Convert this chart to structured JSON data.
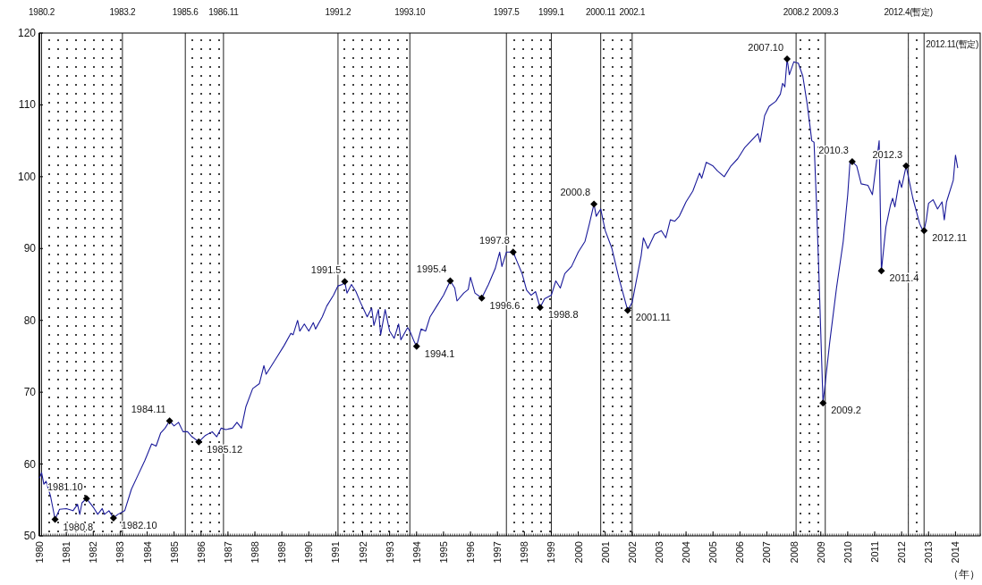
{
  "chart_data": {
    "type": "line",
    "grid": false,
    "xlim": [
      "1980-01",
      "2014-12"
    ],
    "xticks": [
      "1980",
      "1981",
      "1982",
      "1983",
      "1984",
      "1985",
      "1986",
      "1987",
      "1988",
      "1989",
      "1990",
      "1991",
      "1992",
      "1993",
      "1994",
      "1995",
      "1996",
      "1997",
      "1998",
      "1999",
      "2000",
      "2001",
      "2002",
      "2003",
      "2004",
      "2005",
      "2006",
      "2007",
      "2008",
      "2009",
      "2010",
      "2011",
      "2012",
      "2013",
      "2014"
    ],
    "ylim": [
      50,
      120
    ],
    "yticks": [
      50,
      60,
      70,
      80,
      90,
      100,
      110,
      120
    ],
    "x": [
      "1980-01",
      "1980-02",
      "1980-03",
      "1980-04",
      "1980-06",
      "1980-08",
      "1980-10",
      "1981-01",
      "1981-04",
      "1981-06",
      "1981-07",
      "1981-08",
      "1981-10",
      "1982-01",
      "1982-03",
      "1982-05",
      "1982-06",
      "1982-08",
      "1982-10",
      "1982-12",
      "1983-03",
      "1983-06",
      "1983-09",
      "1983-12",
      "1984-03",
      "1984-05",
      "1984-07",
      "1984-09",
      "1984-11",
      "1985-01",
      "1985-03",
      "1985-05",
      "1985-07",
      "1985-09",
      "1985-12",
      "1986-03",
      "1986-06",
      "1986-08",
      "1986-10",
      "1986-12",
      "1987-03",
      "1987-05",
      "1987-07",
      "1987-09",
      "1987-12",
      "1988-03",
      "1988-05",
      "1988-06",
      "1988-08",
      "1988-11",
      "1989-02",
      "1989-05",
      "1989-06",
      "1989-08",
      "1989-09",
      "1989-11",
      "1990-01",
      "1990-03",
      "1990-04",
      "1990-07",
      "1990-09",
      "1990-12",
      "1991-02",
      "1991-04",
      "1991-05",
      "1991-06",
      "1991-08",
      "1991-10",
      "1991-12",
      "1992-03",
      "1992-05",
      "1992-06",
      "1992-08",
      "1992-09",
      "1992-11",
      "1993-01",
      "1993-03",
      "1993-05",
      "1993-06",
      "1993-09",
      "1993-10",
      "1993-12",
      "1994-01",
      "1994-03",
      "1994-05",
      "1994-07",
      "1994-10",
      "1995-01",
      "1995-04",
      "1995-06",
      "1995-07",
      "1995-10",
      "1995-12",
      "1996-01",
      "1996-03",
      "1996-06",
      "1996-09",
      "1996-12",
      "1997-02",
      "1997-03",
      "1997-05",
      "1997-08",
      "1997-10",
      "1997-12",
      "1998-02",
      "1998-04",
      "1998-06",
      "1998-08",
      "1998-10",
      "1999-01",
      "1999-03",
      "1999-05",
      "1999-07",
      "1999-10",
      "2000-01",
      "2000-04",
      "2000-06",
      "2000-08",
      "2000-09",
      "2000-11",
      "2001-01",
      "2001-04",
      "2001-07",
      "2001-11",
      "2002-01",
      "2002-05",
      "2002-06",
      "2002-08",
      "2002-11",
      "2003-02",
      "2003-04",
      "2003-06",
      "2003-08",
      "2003-10",
      "2004-01",
      "2004-04",
      "2004-07",
      "2004-08",
      "2004-10",
      "2005-01",
      "2005-03",
      "2005-06",
      "2005-09",
      "2005-12",
      "2006-03",
      "2006-06",
      "2006-09",
      "2006-10",
      "2006-12",
      "2007-02",
      "2007-05",
      "2007-07",
      "2007-08",
      "2007-09",
      "2007-10",
      "2007-11",
      "2008-01",
      "2008-03",
      "2008-05",
      "2008-07",
      "2008-09",
      "2008-10",
      "2008-11",
      "2008-12",
      "2009-02",
      "2009-05",
      "2009-08",
      "2009-11",
      "2010-01",
      "2010-02",
      "2010-03",
      "2010-05",
      "2010-07",
      "2010-10",
      "2010-12",
      "2011-01",
      "2011-03",
      "2011-04",
      "2011-06",
      "2011-08",
      "2011-09",
      "2011-10",
      "2011-12",
      "2012-01",
      "2012-03",
      "2012-06",
      "2012-09",
      "2012-10",
      "2012-11",
      "2012-12",
      "2013-01",
      "2013-03",
      "2013-05",
      "2013-07",
      "2013-08",
      "2013-09",
      "2013-12",
      "2014-01",
      "2014-02"
    ],
    "series": [
      {
        "color": "#1a1a9a",
        "values": [
          58.0,
          58.8,
          57.2,
          57.6,
          55.5,
          52.3,
          53.7,
          53.8,
          53.5,
          54.4,
          53.0,
          54.6,
          55.2,
          54.0,
          53.0,
          53.8,
          53.0,
          53.5,
          52.5,
          53.0,
          53.5,
          56.5,
          58.5,
          60.5,
          62.8,
          62.5,
          64.3,
          65.0,
          66.0,
          65.3,
          65.8,
          64.5,
          64.5,
          63.8,
          63.1,
          64.0,
          64.5,
          63.8,
          65.0,
          64.8,
          65.0,
          65.8,
          65.0,
          68.0,
          70.5,
          71.2,
          73.7,
          72.5,
          73.5,
          75.0,
          76.5,
          78.2,
          78.0,
          80.0,
          78.5,
          79.5,
          78.5,
          79.7,
          78.8,
          80.5,
          82.0,
          83.5,
          84.8,
          85.0,
          85.4,
          83.8,
          85.0,
          84.0,
          82.5,
          80.5,
          81.7,
          79.3,
          81.5,
          78.0,
          81.5,
          78.5,
          77.5,
          79.5,
          77.3,
          79.0,
          78.5,
          77.0,
          76.4,
          78.8,
          78.5,
          80.5,
          82.0,
          83.5,
          85.5,
          84.5,
          82.7,
          83.8,
          84.3,
          86.0,
          83.8,
          83.1,
          85.0,
          87.2,
          89.5,
          87.5,
          89.5,
          89.5,
          88.0,
          86.5,
          84.2,
          83.5,
          84.0,
          81.8,
          83.0,
          83.5,
          85.5,
          84.5,
          86.5,
          87.5,
          89.5,
          91.0,
          93.5,
          96.2,
          94.5,
          95.5,
          92.5,
          90.0,
          86.0,
          81.4,
          82.5,
          89.0,
          91.5,
          90.0,
          92.0,
          92.5,
          91.5,
          94.0,
          93.8,
          94.5,
          96.5,
          98.0,
          100.5,
          99.8,
          102.0,
          101.5,
          100.8,
          100.0,
          101.5,
          102.5,
          104.0,
          105.0,
          106.0,
          104.8,
          108.5,
          109.8,
          110.5,
          111.5,
          113.0,
          112.5,
          116.4,
          114.2,
          116.0,
          115.8,
          114.0,
          110.0,
          105.0,
          104.8,
          97.0,
          88.0,
          68.5,
          77.0,
          84.5,
          91.0,
          97.5,
          102.0,
          102.1,
          101.5,
          99.0,
          98.8,
          97.5,
          100.0,
          105.0,
          86.9,
          93.0,
          96.0,
          97.0,
          95.8,
          99.5,
          98.5,
          101.5,
          97.0,
          93.5,
          92.8,
          92.5,
          94.0,
          96.3,
          96.8,
          95.5,
          96.5,
          94.0,
          96.5,
          99.5,
          103.0,
          101.2
        ]
      }
    ],
    "bands": [
      {
        "axis": "x",
        "from": "1980-02",
        "to": "1983-02"
      },
      {
        "axis": "x",
        "from": "1985-06",
        "to": "1986-11"
      },
      {
        "axis": "x",
        "from": "1991-02",
        "to": "1993-10"
      },
      {
        "axis": "x",
        "from": "1997-05",
        "to": "1999-01"
      },
      {
        "axis": "x",
        "from": "2000-11",
        "to": "2002-01"
      },
      {
        "axis": "x",
        "from": "2008-02",
        "to": "2009-03"
      },
      {
        "axis": "x",
        "from": "2012-04",
        "to": "2012-11"
      }
    ],
    "ref_lines": [
      {
        "axis": "x",
        "value": "1980-02",
        "label": "1980.2"
      },
      {
        "axis": "x",
        "value": "1983-02",
        "label": "1983.2"
      },
      {
        "axis": "x",
        "value": "1985-06",
        "label": "1985.6"
      },
      {
        "axis": "x",
        "value": "1986-11",
        "label": "1986.11"
      },
      {
        "axis": "x",
        "value": "1991-02",
        "label": "1991.2"
      },
      {
        "axis": "x",
        "value": "1993-10",
        "label": "1993.10"
      },
      {
        "axis": "x",
        "value": "1997-05",
        "label": "1997.5"
      },
      {
        "axis": "x",
        "value": "1999-01",
        "label": "1999.1"
      },
      {
        "axis": "x",
        "value": "2000-11",
        "label": "2000.11"
      },
      {
        "axis": "x",
        "value": "2002-01",
        "label": "2002.1"
      },
      {
        "axis": "x",
        "value": "2008-02",
        "label": "2008.2"
      },
      {
        "axis": "x",
        "value": "2009-03",
        "label": "2009.3"
      },
      {
        "axis": "x",
        "value": "2012-04",
        "label": "2012.4(暫定)"
      },
      {
        "axis": "x",
        "value": "2012-11",
        "label": "2012.11(暫定)"
      }
    ],
    "annotations": [
      {
        "text": "1980.8",
        "x": "1980-08",
        "y": 52.3
      },
      {
        "text": "1981.10",
        "x": "1981-10",
        "y": 55.2
      },
      {
        "text": "1982.10",
        "x": "1982-10",
        "y": 52.5
      },
      {
        "text": "1984.11",
        "x": "1984-11",
        "y": 66.0
      },
      {
        "text": "1985.12",
        "x": "1985-12",
        "y": 63.1
      },
      {
        "text": "1991.5",
        "x": "1991-05",
        "y": 85.4
      },
      {
        "text": "1994.1",
        "x": "1994-01",
        "y": 76.4
      },
      {
        "text": "1995.4",
        "x": "1995-04",
        "y": 85.5
      },
      {
        "text": "1996.6",
        "x": "1996-06",
        "y": 83.1
      },
      {
        "text": "1997.8",
        "x": "1997-08",
        "y": 89.5
      },
      {
        "text": "1998.8",
        "x": "1998-08",
        "y": 81.8
      },
      {
        "text": "2000.8",
        "x": "2000-08",
        "y": 96.2
      },
      {
        "text": "2001.11",
        "x": "2001-11",
        "y": 81.4
      },
      {
        "text": "2007.10",
        "x": "2007-10",
        "y": 116.4
      },
      {
        "text": "2009.2",
        "x": "2009-02",
        "y": 68.5
      },
      {
        "text": "2010.3",
        "x": "2010-03",
        "y": 102.1
      },
      {
        "text": "2011.4",
        "x": "2011-04",
        "y": 86.9
      },
      {
        "text": "2012.3",
        "x": "2012-03",
        "y": 101.5
      },
      {
        "text": "2012.11",
        "x": "2012-11",
        "y": 92.5
      },
      "（年）"
    ]
  }
}
